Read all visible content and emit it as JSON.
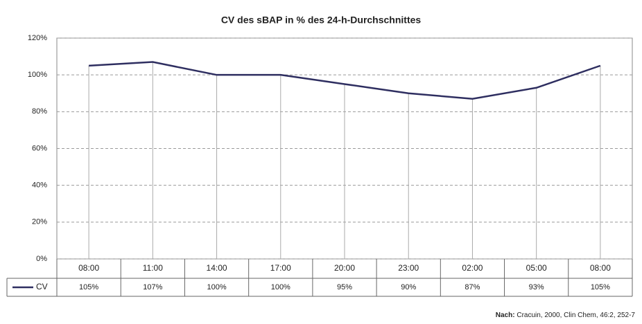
{
  "chart_data": {
    "type": "line",
    "title": "CV des sBAP in % des 24-h-Durchschnittes",
    "categories": [
      "08:00",
      "11:00",
      "14:00",
      "17:00",
      "20:00",
      "23:00",
      "02:00",
      "05:00",
      "08:00"
    ],
    "series": [
      {
        "name": "CV",
        "color": "#2e2e60",
        "values": [
          105,
          107,
          100,
          100,
          95,
          90,
          87,
          93,
          105
        ],
        "value_labels": [
          "105%",
          "107%",
          "100%",
          "100%",
          "95%",
          "90%",
          "87%",
          "93%",
          "105%"
        ]
      }
    ],
    "ylim": [
      0,
      120
    ],
    "yticks": [
      {
        "value": 0,
        "label": "0%"
      },
      {
        "value": 20,
        "label": "20%"
      },
      {
        "value": 40,
        "label": "40%"
      },
      {
        "value": 60,
        "label": "60%"
      },
      {
        "value": 80,
        "label": "80%"
      },
      {
        "value": 100,
        "label": "100%"
      },
      {
        "value": 120,
        "label": "120%"
      }
    ],
    "grid": true,
    "source_label": "Nach:",
    "source": "Cracuin, 2000, Clin Chem, 46:2, 252-7"
  }
}
